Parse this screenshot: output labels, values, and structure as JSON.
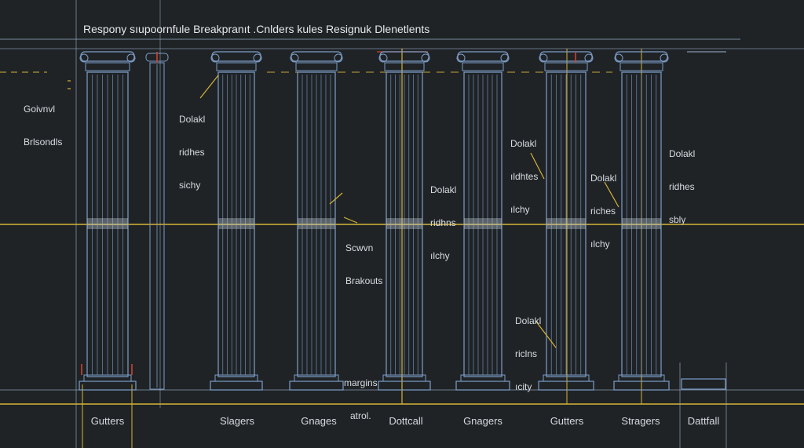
{
  "title": "Respony sıupoornfule Breakpranıt .Cnlders kules Resignuk Dlenetlents",
  "annotations": [
    {
      "id": "ann-gutter-breakpoints",
      "lines": [
        "Goivnvl",
        "Brlsondls"
      ]
    },
    {
      "id": "ann-dolakl-1",
      "lines": [
        "Dolakl",
        "ridhes",
        "sichy"
      ]
    },
    {
      "id": "ann-dolakl-2",
      "lines": [
        "Dolakl",
        "ridhns",
        "ılchy"
      ]
    },
    {
      "id": "ann-breakpoints",
      "lines": [
        "Scwvn",
        "Brakouts"
      ]
    },
    {
      "id": "ann-dolakl-3",
      "lines": [
        "Dolakl",
        "ıldhtes",
        "ılchy"
      ]
    },
    {
      "id": "ann-dolakl-4",
      "lines": [
        "Dolakl",
        "riches",
        "ılchy"
      ]
    },
    {
      "id": "ann-dolakl-5",
      "lines": [
        "Dolakl",
        "ridhes",
        "sbly"
      ]
    },
    {
      "id": "ann-dolakl-6",
      "lines": [
        "Dolakl",
        "riclns",
        "ıcity"
      ]
    },
    {
      "id": "ann-margins",
      "lines": [
        "margins",
        "atrol."
      ]
    }
  ],
  "footer": [
    "Gutters",
    "Slagers",
    "Gnages",
    "Dottcall",
    "Gnagers",
    "Gutters",
    "Stragers",
    "Dattfall"
  ],
  "colors": {
    "background": "#1f2326",
    "column": "#7e9ec8",
    "guide_yellow": "#d6b437",
    "guide_blue": "#9fb6cf",
    "accent_red": "#d0412f",
    "text": "#d8dde2"
  }
}
